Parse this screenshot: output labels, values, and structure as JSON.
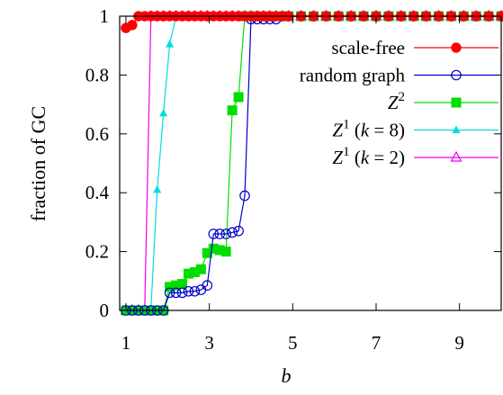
{
  "chart_data": {
    "type": "line",
    "title": "",
    "xlabel": "b",
    "ylabel": "fraction of GC",
    "xlim": [
      0.85,
      10
    ],
    "ylim": [
      0,
      1
    ],
    "xticks": [
      1,
      3,
      5,
      7,
      9
    ],
    "yticks": [
      0,
      0.2,
      0.4,
      0.6,
      0.8,
      1
    ],
    "xtick_labels": [
      "1",
      "3",
      "5",
      "7",
      "9"
    ],
    "ytick_labels": [
      "0",
      "0.2",
      "0.4",
      "0.6",
      "0.8",
      "1"
    ],
    "grid": false,
    "legend_position": "right",
    "series": [
      {
        "name": "scale-free",
        "color": "#ff0000",
        "marker": "filled-circle",
        "x": [
          1.0,
          1.15,
          1.3,
          1.45,
          1.6,
          1.75,
          1.9,
          2.05,
          2.2,
          2.35,
          2.5,
          2.65,
          2.8,
          2.95,
          3.1,
          3.25,
          3.4,
          3.55,
          3.7,
          3.85,
          4.0,
          4.15,
          4.3,
          4.45,
          4.6,
          4.75,
          4.9,
          5.2,
          5.5,
          5.8,
          6.1,
          6.4,
          6.7,
          7.0,
          7.3,
          7.6,
          7.9,
          8.2,
          8.5,
          8.8,
          9.1,
          9.4,
          9.7,
          10.0
        ],
        "y": [
          0.96,
          0.97,
          1,
          1,
          1,
          1,
          1,
          1,
          1,
          1,
          1,
          1,
          1,
          1,
          1,
          1,
          1,
          1,
          1,
          1,
          1,
          1,
          1,
          1,
          1,
          1,
          1,
          1,
          1,
          1,
          1,
          1,
          1,
          1,
          1,
          1,
          1,
          1,
          1,
          1,
          1,
          1,
          1,
          1
        ]
      },
      {
        "name": "random graph",
        "color": "#0000cc",
        "marker": "open-circle",
        "x": [
          1.0,
          1.15,
          1.3,
          1.45,
          1.6,
          1.75,
          1.9,
          2.05,
          2.2,
          2.35,
          2.5,
          2.65,
          2.8,
          2.95,
          3.1,
          3.25,
          3.4,
          3.55,
          3.7,
          3.85,
          4.0,
          4.15,
          4.3,
          4.45,
          4.6,
          4.75,
          4.9,
          5.2,
          5.5,
          5.8,
          6.1,
          6.4,
          6.7,
          7.0,
          7.3,
          7.6,
          7.9,
          8.2,
          8.5,
          8.8,
          9.1,
          9.4,
          9.7,
          10.0
        ],
        "y": [
          0,
          0,
          0,
          0,
          0,
          0,
          0,
          0.06,
          0.06,
          0.06,
          0.065,
          0.065,
          0.07,
          0.085,
          0.26,
          0.26,
          0.26,
          0.265,
          0.27,
          0.39,
          0.99,
          0.99,
          0.99,
          0.99,
          0.99,
          1,
          1,
          1,
          1,
          1,
          1,
          1,
          1,
          1,
          1,
          1,
          1,
          1,
          1,
          1,
          1,
          1,
          1,
          1
        ]
      },
      {
        "name": "Z^2",
        "color": "#00dd00",
        "marker": "filled-square",
        "x": [
          1.0,
          1.15,
          1.3,
          1.45,
          1.6,
          1.75,
          1.9,
          2.05,
          2.2,
          2.35,
          2.5,
          2.65,
          2.8,
          2.95,
          3.1,
          3.25,
          3.4,
          3.55,
          3.7,
          3.85,
          4.0,
          4.15,
          4.3,
          4.45,
          4.6,
          4.75,
          4.9,
          5.2,
          5.5,
          5.8,
          6.1,
          6.4,
          6.7,
          7.0,
          7.3,
          7.6,
          7.9,
          8.2,
          8.5,
          8.8,
          9.1,
          9.4,
          9.7,
          10.0
        ],
        "y": [
          0,
          0,
          0,
          0,
          0,
          0,
          0,
          0.08,
          0.085,
          0.09,
          0.125,
          0.13,
          0.14,
          0.195,
          0.21,
          0.205,
          0.2,
          0.68,
          0.725,
          1,
          1,
          1,
          1,
          1,
          1,
          1,
          1,
          1,
          1,
          1,
          1,
          1,
          1,
          1,
          1,
          1,
          1,
          1,
          1,
          1,
          1,
          1,
          1,
          1
        ]
      },
      {
        "name": "Z^1 (k = 8)",
        "color": "#00dddd",
        "marker": "filled-triangle",
        "x": [
          1.0,
          1.15,
          1.3,
          1.45,
          1.6,
          1.75,
          1.9,
          2.05,
          2.2,
          2.35,
          2.5,
          2.65,
          2.8,
          2.95,
          3.1,
          3.25,
          3.4,
          3.55,
          3.7,
          3.85,
          4.0,
          4.15,
          4.3,
          4.45,
          4.6,
          4.75,
          4.9,
          5.2,
          5.5,
          5.8,
          6.1,
          6.4,
          6.7,
          7.0,
          7.3,
          7.6,
          7.9,
          8.2,
          8.5,
          8.8,
          9.1,
          9.4,
          9.7,
          10.0
        ],
        "y": [
          0,
          0,
          0,
          0,
          0.005,
          0.41,
          0.67,
          0.905,
          1,
          1,
          1,
          1,
          1,
          1,
          1,
          1,
          1,
          1,
          1,
          1,
          1,
          1,
          1,
          1,
          1,
          1,
          1,
          1,
          1,
          1,
          1,
          1,
          1,
          1,
          1,
          1,
          1,
          1,
          1,
          1,
          1,
          1,
          1,
          1
        ]
      },
      {
        "name": "Z^1 (k = 2)",
        "color": "#ee00ee",
        "marker": "open-triangle",
        "x": [
          1.0,
          1.15,
          1.3,
          1.45,
          1.6,
          1.75,
          1.9,
          2.05,
          2.2,
          2.35,
          2.5,
          2.65,
          2.8,
          2.95,
          3.1,
          3.25,
          3.4,
          3.55,
          3.7,
          3.85,
          4.0,
          4.15,
          4.3,
          4.45,
          4.6,
          4.75,
          4.9,
          5.2,
          5.5,
          5.8,
          6.1,
          6.4,
          6.7,
          7.0,
          7.3,
          7.6,
          7.9,
          8.2,
          8.5,
          8.8,
          9.1,
          9.4,
          9.7,
          10.0
        ],
        "y": [
          0,
          0,
          0,
          0,
          1,
          1,
          1,
          1,
          1,
          1,
          1,
          1,
          1,
          1,
          1,
          1,
          1,
          1,
          1,
          1,
          1,
          1,
          1,
          1,
          1,
          1,
          1,
          1,
          1,
          1,
          1,
          1,
          1,
          1,
          1,
          1,
          1,
          1,
          1,
          1,
          1,
          1,
          1,
          1
        ]
      }
    ],
    "legend": [
      {
        "base": "scale-free",
        "sup": "",
        "suffix": ""
      },
      {
        "base": "random graph",
        "sup": "",
        "suffix": ""
      },
      {
        "base": "Z",
        "sup": "2",
        "suffix": ""
      },
      {
        "base": "Z",
        "sup": "1",
        "suffix": " (k = 8)"
      },
      {
        "base": "Z",
        "sup": "1",
        "suffix": " (k = 2)"
      }
    ]
  }
}
